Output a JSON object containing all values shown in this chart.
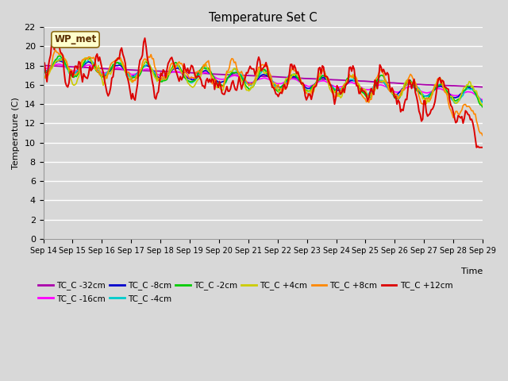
{
  "title": "Temperature Set C",
  "xlabel": "Time",
  "ylabel": "Temperature (C)",
  "ylim": [
    0,
    22
  ],
  "yticks": [
    0,
    2,
    4,
    6,
    8,
    10,
    12,
    14,
    16,
    18,
    20,
    22
  ],
  "bg_color": "#d8d8d8",
  "plot_bg_color": "#d8d8d8",
  "grid_color": "#ffffff",
  "annotation_text": "WP_met",
  "annotation_bg": "#ffffcc",
  "annotation_border": "#8b4513",
  "series": {
    "TC_C -32cm": {
      "color": "#aa00aa"
    },
    "TC_C -16cm": {
      "color": "#ff00ff"
    },
    "TC_C -8cm": {
      "color": "#0000cc"
    },
    "TC_C -4cm": {
      "color": "#00cccc"
    },
    "TC_C -2cm": {
      "color": "#00cc00"
    },
    "TC_C +4cm": {
      "color": "#cccc00"
    },
    "TC_C +8cm": {
      "color": "#ff8800"
    },
    "TC_C +12cm": {
      "color": "#dd0000"
    }
  },
  "xticklabels": [
    "Sep 14",
    "Sep 15",
    "Sep 16",
    "Sep 17",
    "Sep 18",
    "Sep 19",
    "Sep 20",
    "Sep 21",
    "Sep 22",
    "Sep 23",
    "Sep 24",
    "Sep 25",
    "Sep 26",
    "Sep 27",
    "Sep 28",
    "Sep 29"
  ]
}
